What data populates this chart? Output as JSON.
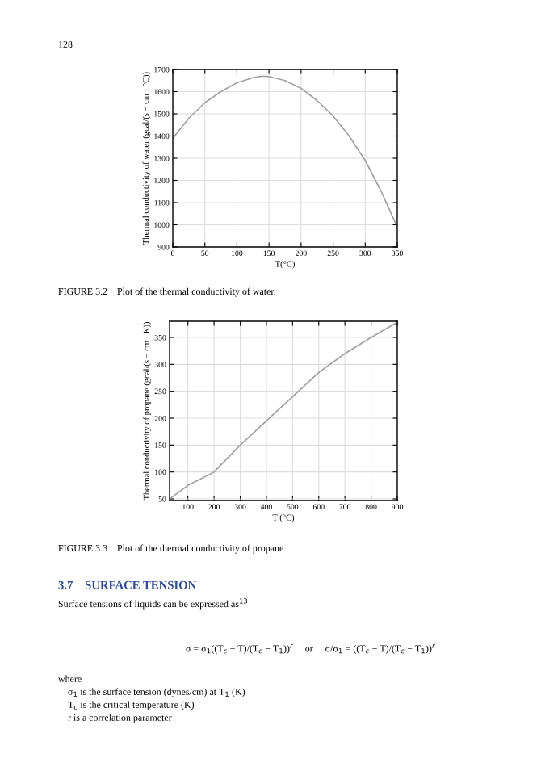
{
  "chart_data": [
    {
      "type": "line",
      "xlabel": "T(°C)",
      "ylabel": "Thermal conductivity of water (gcal/(s − cm · °C))",
      "x": [
        0,
        25,
        50,
        75,
        100,
        125,
        140,
        150,
        175,
        200,
        225,
        250,
        275,
        300,
        325,
        350
      ],
      "values": [
        1390,
        1480,
        1550,
        1600,
        1640,
        1663,
        1670,
        1668,
        1650,
        1615,
        1560,
        1490,
        1400,
        1290,
        1150,
        990
      ],
      "color": "#a0a0a0",
      "xlim": [
        0,
        350
      ],
      "ylim": [
        900,
        1700
      ],
      "xticks": [
        0,
        50,
        100,
        150,
        200,
        250,
        300,
        350
      ],
      "yticks": [
        900,
        1000,
        1100,
        1200,
        1300,
        1400,
        1500,
        1600,
        1700
      ],
      "grid": true,
      "annotations": [
        "FIGURE 3.2    Plot of the thermal conductivity of water."
      ]
    },
    {
      "type": "line",
      "xlabel": "T (°C)",
      "ylabel": "Thermal conductivity of propane (gcal/(s − cm · K))",
      "x": [
        30,
        100,
        200,
        300,
        400,
        500,
        600,
        700,
        800,
        900
      ],
      "values": [
        50,
        75,
        100,
        150,
        195,
        240,
        285,
        320,
        350,
        378
      ],
      "color": "#a0a0a0",
      "xlim": [
        30,
        900
      ],
      "ylim": [
        47,
        380
      ],
      "xticks": [
        100,
        200,
        300,
        400,
        500,
        600,
        700,
        800,
        900
      ],
      "yticks": [
        50,
        100,
        150,
        200,
        250,
        300,
        350
      ],
      "grid": true,
      "annotations": [
        "FIGURE 3.3    Plot of the thermal conductivity of propane."
      ]
    },
    {
      "type": "other",
      "title": "3.7    SURFACE TENSION",
      "color": "#2e4a9e",
      "annotations": [
        "128",
        "Surface tensions of liquids can be expressed as$^{13}$",
        "σ = σ$_{1}$((T$_{c}$ − T)/(T$_{c}$ − T$_{1}$))$^{r}$     or     σ/σ$_{1}$ = ((T$_{c}$ − T)/(T$_{c}$ − T$_{1}$))$^{r}$",
        "where",
        "σ$_{1}$ is the surface tension (dynes/cm) at T$_{1}$ (K)",
        "T$_{c}$ is the critical temperature (K)",
        "r is a correlation parameter"
      ]
    }
  ]
}
